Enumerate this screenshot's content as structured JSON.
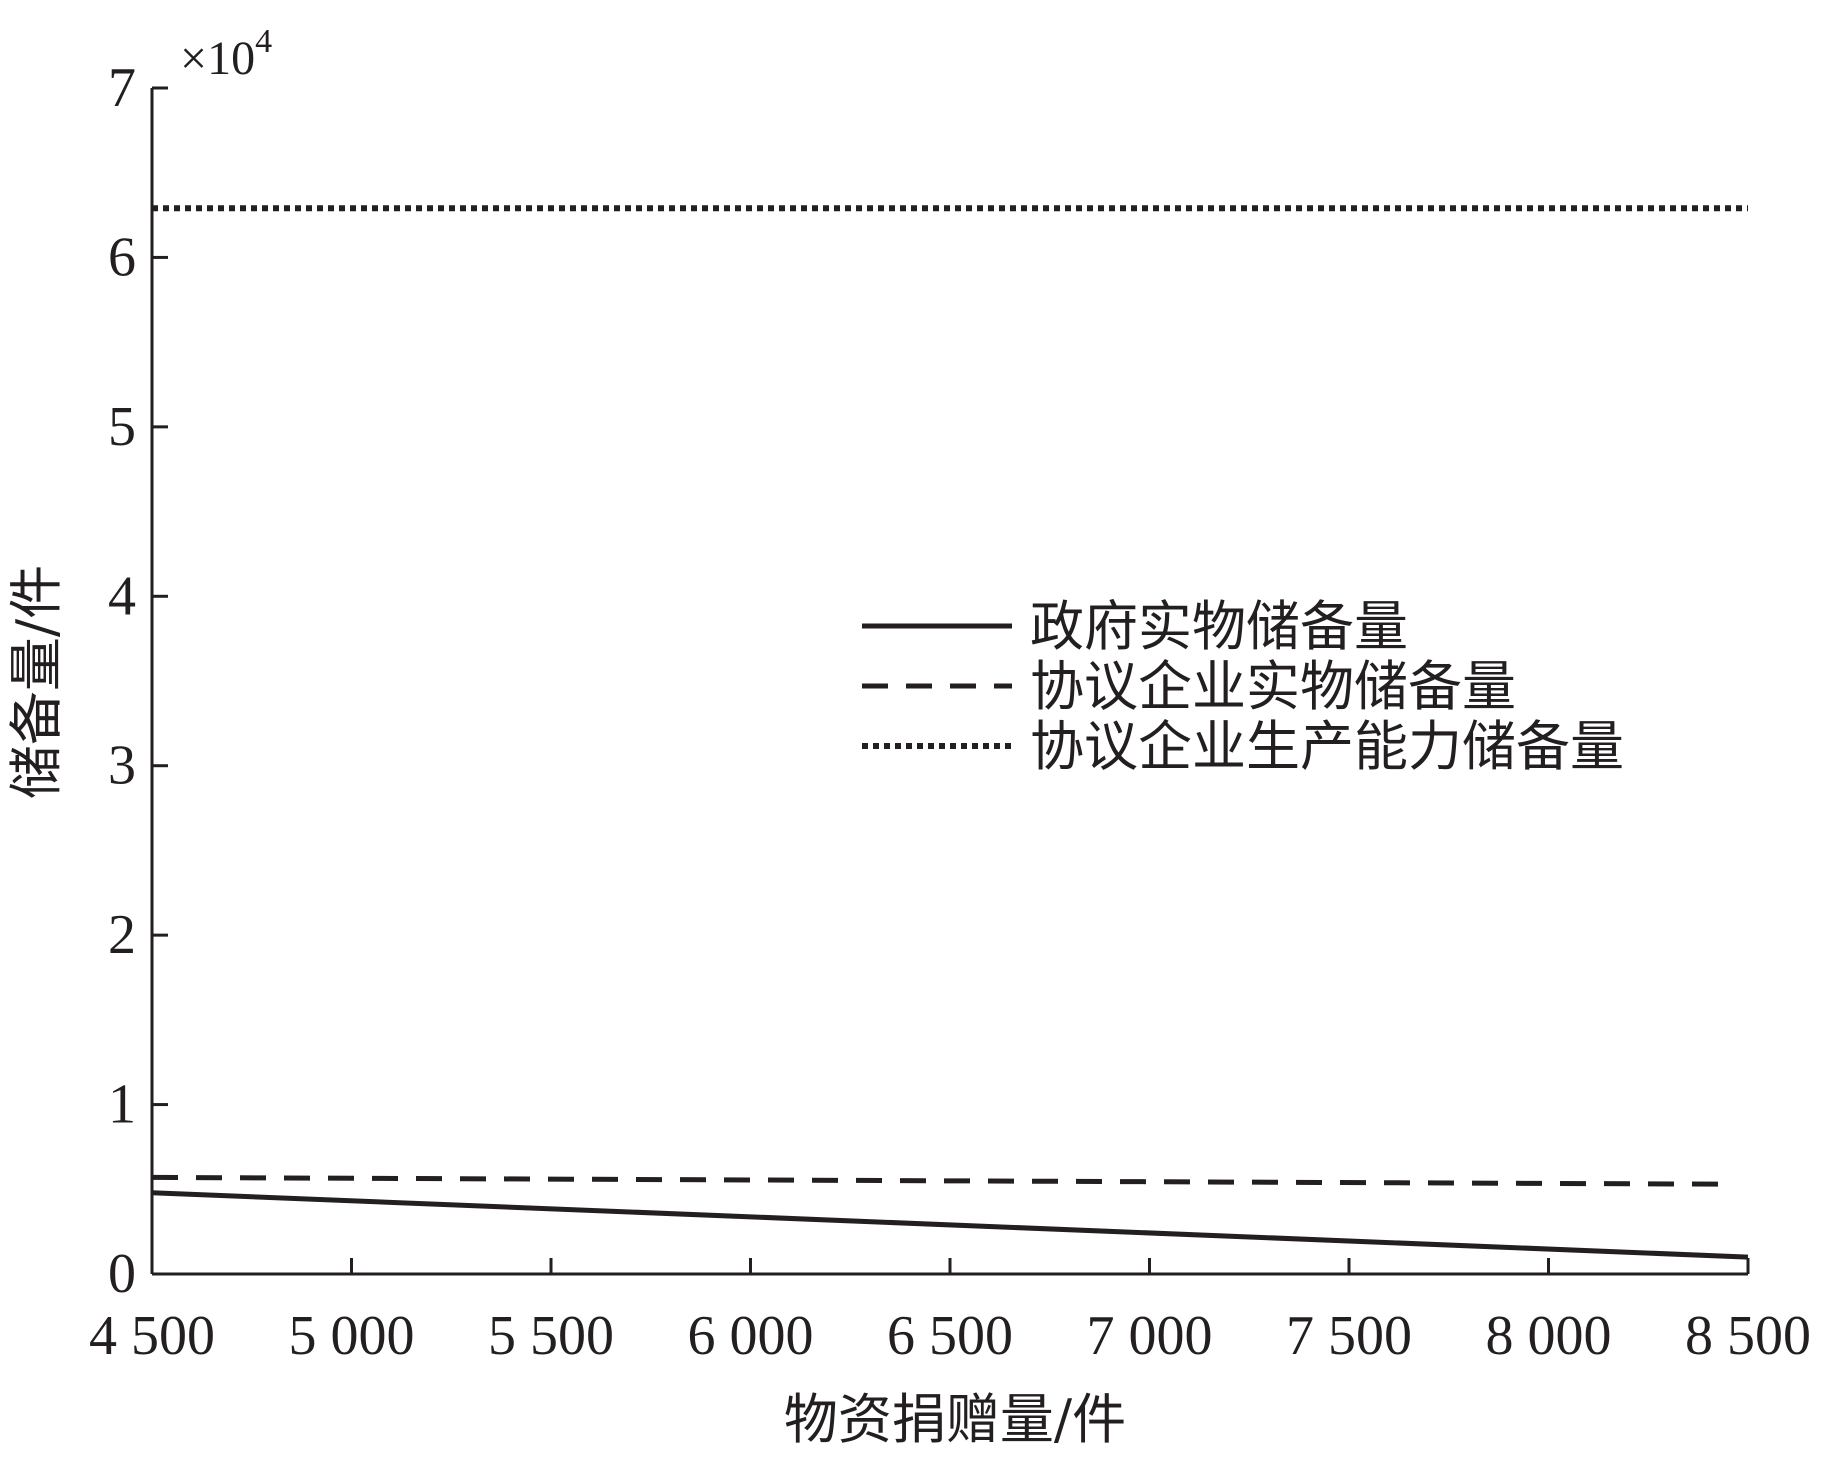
{
  "chart_data": {
    "type": "line",
    "xlabel": "物资捐赠量/件",
    "ylabel": "储备量/件",
    "y_multiplier": "×10",
    "y_multiplier_exp": "4",
    "xlim": [
      4500,
      8500
    ],
    "ylim": [
      0,
      7
    ],
    "x_ticks": [
      4500,
      5000,
      5500,
      6000,
      6500,
      7000,
      7500,
      8000,
      8500
    ],
    "x_tick_labels": [
      "4 500",
      "5 000",
      "5 500",
      "6 000",
      "6 500",
      "7 000",
      "7 500",
      "8 000",
      "8 500"
    ],
    "y_ticks": [
      0,
      1,
      2,
      3,
      4,
      5,
      6,
      7
    ],
    "y_tick_labels": [
      "0",
      "1",
      "2",
      "3",
      "4",
      "5",
      "6",
      "7"
    ],
    "legend_position": "middle-right",
    "grid": false,
    "series": [
      {
        "name": "政府实物储备量",
        "style": "solid",
        "x": [
          4500,
          8500
        ],
        "y": [
          0.48,
          0.1
        ]
      },
      {
        "name": "协议企业实物储备量",
        "style": "dashed",
        "x": [
          4500,
          8450
        ],
        "y": [
          0.57,
          0.53
        ]
      },
      {
        "name": "协议企业生产能力储备量",
        "style": "dotted",
        "x": [
          4500,
          8500
        ],
        "y": [
          6.29,
          6.29
        ]
      }
    ]
  },
  "colors": {
    "ink": "#231f20",
    "background": "#ffffff"
  }
}
